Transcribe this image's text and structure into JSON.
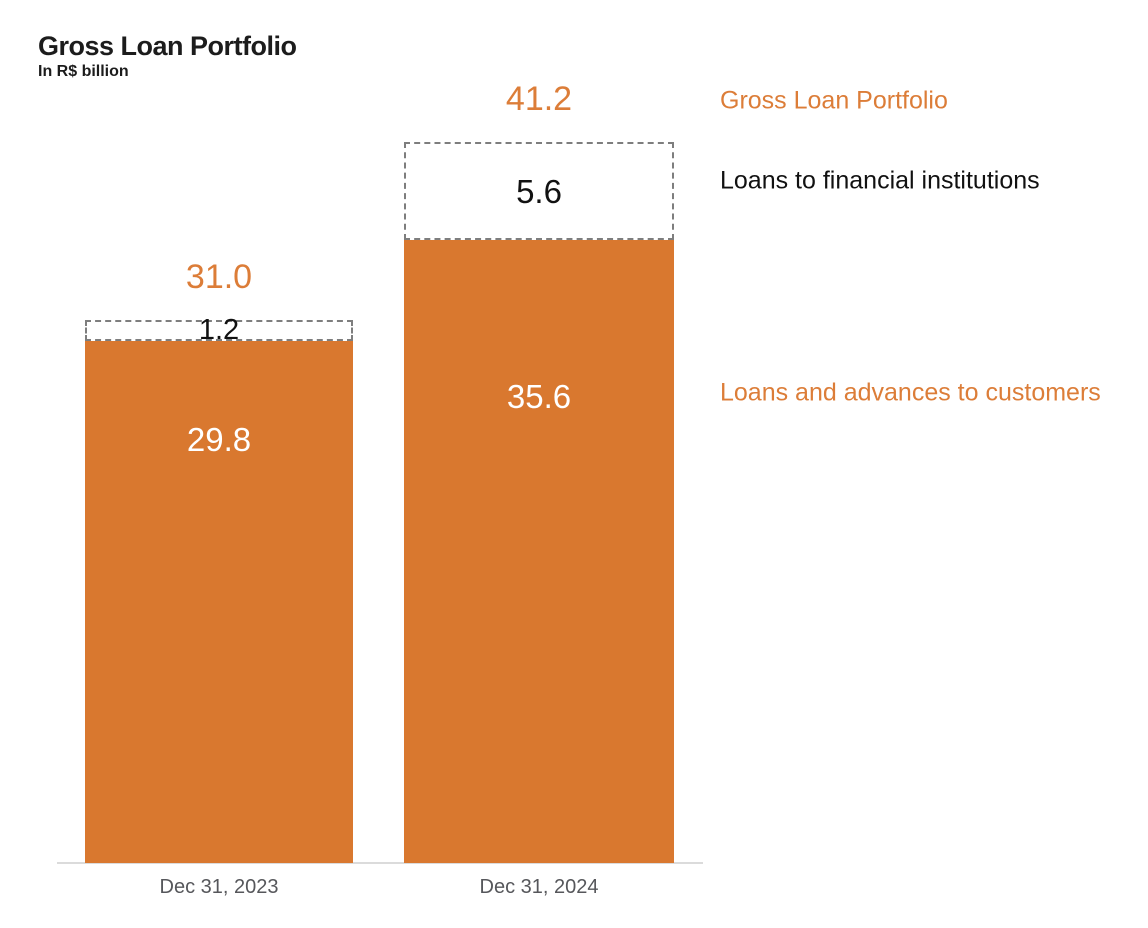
{
  "header": {
    "title": "Gross Loan Portfolio",
    "subtitle": "In R$ billion"
  },
  "colors": {
    "orange_bar": "#D9782F",
    "orange_text": "#DC7D38",
    "title_black": "#1C1C1C",
    "label_black": "#111111",
    "axis_gray": "#DBDBDB",
    "tick_gray": "#56575B",
    "dash_gray": "#7E7E7E",
    "bar_value_white": "#FFFFFF"
  },
  "chart_data": {
    "type": "bar",
    "stacked": true,
    "title": "Gross Loan Portfolio",
    "subtitle": "In R$ billion",
    "unit": "R$ billion",
    "categories": [
      "Dec 31, 2023",
      "Dec 31, 2024"
    ],
    "series": [
      {
        "name": "Loans and advances to customers",
        "values": [
          29.8,
          35.6
        ],
        "labels": [
          "29.8",
          "35.6"
        ],
        "style": "solid-orange"
      },
      {
        "name": "Loans to financial institutions",
        "values": [
          1.2,
          5.6
        ],
        "labels": [
          "1.2",
          "5.6"
        ],
        "style": "dashed-outline-white"
      }
    ],
    "totals": {
      "name": "Gross Loan Portfolio",
      "values": [
        31.0,
        41.2
      ],
      "labels": [
        "31.0",
        "41.2"
      ]
    },
    "ylim": [
      0,
      45
    ],
    "grid": false,
    "y_axis_visible": false,
    "legend_position": "right"
  }
}
